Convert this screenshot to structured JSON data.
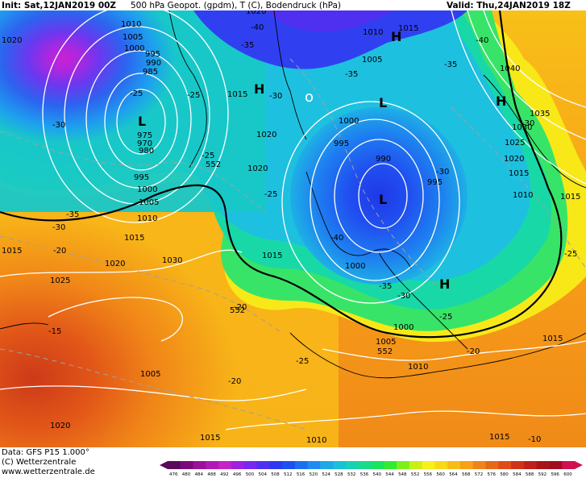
{
  "header": {
    "init": "Init: Sat,12JAN2019 00Z",
    "title": "500 hPa Geopot. (gpdm), T (C), Bodendruck (hPa)",
    "valid": "Valid: Thu,24JAN2019 18Z"
  },
  "footer": {
    "data_line": "Data: GFS P15 1.000°",
    "copyright": "(C) Wetterzentrale",
    "website": "www.wetterzentrale.de"
  },
  "scale": {
    "ticks": [
      "476",
      "480",
      "484",
      "488",
      "492",
      "496",
      "500",
      "504",
      "508",
      "512",
      "516",
      "520",
      "524",
      "528",
      "532",
      "536",
      "540",
      "544",
      "548",
      "552",
      "556",
      "560",
      "564",
      "568",
      "572",
      "576",
      "580",
      "584",
      "588",
      "592",
      "596",
      "600"
    ],
    "colors": [
      "#5a0a5a",
      "#7a0a7a",
      "#9a109a",
      "#b418b4",
      "#c820c8",
      "#a020e0",
      "#7828f0",
      "#5030f0",
      "#3038f0",
      "#1e50f0",
      "#1e6ef0",
      "#1e8cf0",
      "#1ea8e8",
      "#18c0d8",
      "#18d0b4",
      "#18dc8c",
      "#18e460",
      "#30ec30",
      "#7cf018",
      "#c8f018",
      "#f8f018",
      "#f8d818",
      "#f8bc18",
      "#f8a018",
      "#f08418",
      "#e86818",
      "#e04c18",
      "#d03418",
      "#c02018",
      "#a81418",
      "#a00c20",
      "#d01050"
    ]
  },
  "map_labels": {
    "highs": [
      "H",
      "H",
      "H",
      "H"
    ],
    "lows": [
      "L",
      "L",
      "L"
    ],
    "isobars": [
      "1010",
      "1005",
      "1000",
      "995",
      "990",
      "985",
      "975",
      "970",
      "980",
      "995",
      "1000",
      "1005",
      "1010",
      "1015",
      "1020",
      "1020",
      "1015",
      "1020",
      "1015",
      "1010",
      "1015",
      "1005",
      "1000",
      "995",
      "990",
      "995",
      "1000",
      "1005",
      "1010",
      "1015",
      "1040",
      "1035",
      "1030",
      "1025",
      "1020",
      "1015",
      "1010",
      "1015",
      "1020",
      "1020",
      "1025",
      "1030",
      "1015",
      "1000",
      "1005",
      "1010",
      "1015",
      "1020",
      "1015",
      "1015",
      "1020",
      "030",
      "1020",
      "1025",
      "1030",
      "1000"
    ],
    "temperatures": [
      "-40",
      "-35",
      "-40",
      "-25",
      "-30",
      "-35",
      "-25",
      "-30",
      "-25",
      "-35",
      "-30",
      "-25",
      "-30",
      "-40",
      "-35",
      "-30",
      "-35",
      "-30",
      "-25",
      "-20",
      "-20",
      "-25",
      "-25",
      "-15",
      "-20",
      "-20",
      "-25",
      "-25",
      "-20",
      "-20",
      "-10"
    ],
    "geopotential": [
      "552",
      "552",
      "552",
      "552"
    ]
  }
}
